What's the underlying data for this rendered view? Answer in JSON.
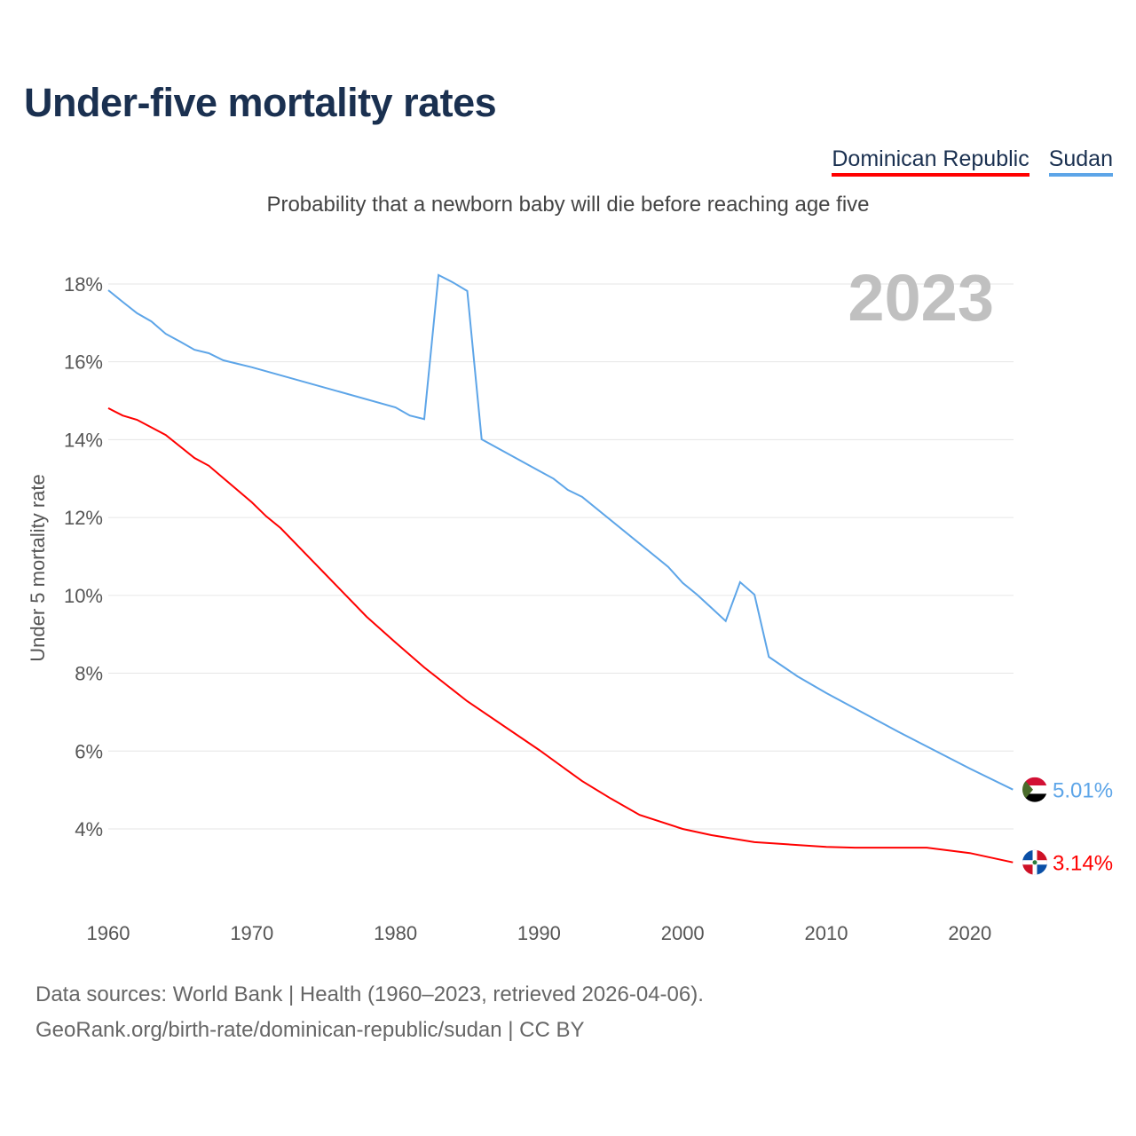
{
  "title": "Under-five mortality rates",
  "subtitle": "Probability that a newborn baby will die before reaching age five",
  "footer": {
    "line1": "Data sources: World Bank | Health (1960–2023, retrieved 2026-04-06).",
    "line2": "GeoRank.org/birth-rate/dominican-republic/sudan | CC BY"
  },
  "chart_data": {
    "type": "line",
    "title": "Under-five mortality rates",
    "ylabel": "Under 5 mortality rate",
    "xlabel": "",
    "year_label": "2023",
    "xlim": [
      1960,
      2023
    ],
    "ylim": [
      2,
      18.5
    ],
    "xticks": [
      1960,
      1970,
      1980,
      1990,
      2000,
      2010,
      2020
    ],
    "yticks": [
      4,
      6,
      8,
      10,
      12,
      14,
      16,
      18
    ],
    "ytick_labels": [
      "4%",
      "6%",
      "8%",
      "10%",
      "12%",
      "14%",
      "16%",
      "18%"
    ],
    "grid": true,
    "legend_position": "top-right",
    "series": [
      {
        "name": "Dominican Republic",
        "color": "#ff0000",
        "end_label": "3.14%",
        "flag": "dominican-republic-flag-icon",
        "points": [
          [
            1960,
            14.81
          ],
          [
            1961,
            14.62
          ],
          [
            1962,
            14.51
          ],
          [
            1964,
            14.12
          ],
          [
            1966,
            13.53
          ],
          [
            1967,
            13.33
          ],
          [
            1970,
            12.39
          ],
          [
            1971,
            12.03
          ],
          [
            1972,
            11.73
          ],
          [
            1975,
            10.59
          ],
          [
            1978,
            9.45
          ],
          [
            1980,
            8.79
          ],
          [
            1982,
            8.15
          ],
          [
            1985,
            7.28
          ],
          [
            1990,
            6.03
          ],
          [
            1993,
            5.23
          ],
          [
            1995,
            4.78
          ],
          [
            1997,
            4.36
          ],
          [
            2000,
            4.0
          ],
          [
            2002,
            3.84
          ],
          [
            2005,
            3.66
          ],
          [
            2010,
            3.54
          ],
          [
            2012,
            3.52
          ],
          [
            2017,
            3.52
          ],
          [
            2020,
            3.38
          ],
          [
            2023,
            3.14
          ]
        ]
      },
      {
        "name": "Sudan",
        "color": "#5da5e8",
        "end_label": "5.01%",
        "flag": "sudan-flag-icon",
        "points": [
          [
            1960,
            17.84
          ],
          [
            1961,
            17.54
          ],
          [
            1962,
            17.25
          ],
          [
            1963,
            17.04
          ],
          [
            1964,
            16.72
          ],
          [
            1965,
            16.52
          ],
          [
            1966,
            16.31
          ],
          [
            1967,
            16.22
          ],
          [
            1968,
            16.04
          ],
          [
            1969,
            15.95
          ],
          [
            1970,
            15.86
          ],
          [
            1980,
            14.83
          ],
          [
            1981,
            14.62
          ],
          [
            1982,
            14.53
          ],
          [
            1983,
            18.23
          ],
          [
            1984,
            18.04
          ],
          [
            1985,
            17.82
          ],
          [
            1986,
            14.01
          ],
          [
            1990,
            13.2
          ],
          [
            1991,
            13.0
          ],
          [
            1992,
            12.71
          ],
          [
            1993,
            12.53
          ],
          [
            1999,
            10.73
          ],
          [
            2000,
            10.32
          ],
          [
            2001,
            10.02
          ],
          [
            2002,
            9.68
          ],
          [
            2003,
            9.34
          ],
          [
            2004,
            10.34
          ],
          [
            2005,
            10.02
          ],
          [
            2006,
            8.42
          ],
          [
            2008,
            7.92
          ],
          [
            2010,
            7.49
          ],
          [
            2015,
            6.5
          ],
          [
            2020,
            5.55
          ],
          [
            2023,
            5.01
          ]
        ]
      }
    ]
  }
}
